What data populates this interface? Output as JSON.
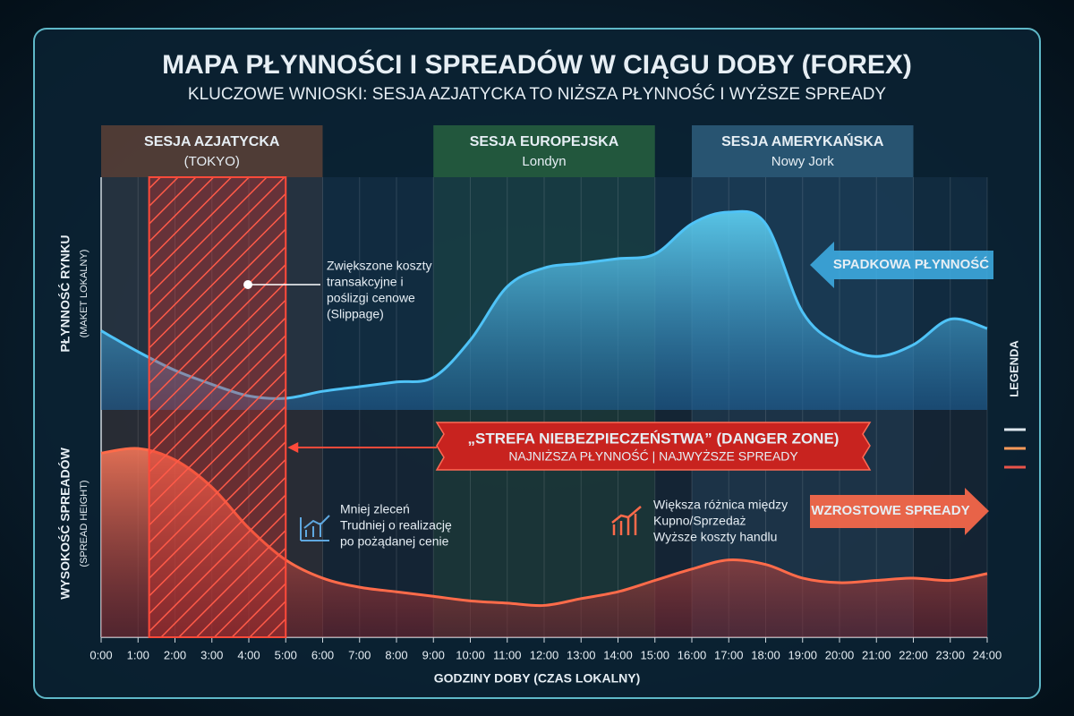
{
  "chart_data": {
    "type": "area",
    "title": "MAPA PŁYNNOŚCI I SPREADÓW W CIĄGU DOBY (FOREX)",
    "subtitle": "KLUCZOWE WNIOSKI: SESJA AZJATYCKA TO NIŻSZA PŁYNNOŚĆ I WYŻSZE SPREADY",
    "x_label": "GODZINY DOBY (CZAS LOKALNY)",
    "x": [
      0,
      1,
      2,
      3,
      4,
      5,
      6,
      7,
      8,
      9,
      10,
      11,
      12,
      13,
      14,
      15,
      16,
      17,
      18,
      19,
      20,
      21,
      22,
      23,
      24
    ],
    "xlim": [
      0,
      24
    ],
    "xticks": [
      {
        "value": 0,
        "label": "0:00"
      },
      {
        "value": 1,
        "label": "1:00"
      },
      {
        "value": 2,
        "label": "2:00"
      },
      {
        "value": 3,
        "label": "3:00"
      },
      {
        "value": 4,
        "label": "4:00"
      },
      {
        "value": 5,
        "label": "5:00"
      },
      {
        "value": 6,
        "label": "6:00"
      },
      {
        "value": 7,
        "label": "7:00"
      },
      {
        "value": 8,
        "label": "8:00"
      },
      {
        "value": 9,
        "label": "9:00"
      },
      {
        "value": 10,
        "label": "10:00"
      },
      {
        "value": 11,
        "label": "11:00"
      },
      {
        "value": 12,
        "label": "12:00"
      },
      {
        "value": 13,
        "label": "13:00"
      },
      {
        "value": 14,
        "label": "14:00"
      },
      {
        "value": 15,
        "label": "15:00"
      },
      {
        "value": 16,
        "label": "16:00"
      },
      {
        "value": 17,
        "label": "17:00"
      },
      {
        "value": 18,
        "label": "18:00"
      },
      {
        "value": 19,
        "label": "19:00"
      },
      {
        "value": 20,
        "label": "20:00"
      },
      {
        "value": 21,
        "label": "21:00"
      },
      {
        "value": 22,
        "label": "22:00"
      },
      {
        "value": 23,
        "label": "23:00"
      },
      {
        "value": 24,
        "label": "24:00"
      }
    ],
    "grid": true,
    "series": [
      {
        "name": "PŁYNNOŚĆ RYNKU",
        "axis_note": "(MAKET LOKALNY)",
        "color": "#4fc3f7",
        "ylim": [
          0,
          100
        ],
        "values": [
          34,
          25,
          17,
          11,
          6,
          5,
          8,
          10,
          12,
          14,
          30,
          53,
          61,
          63,
          65,
          67,
          80,
          85,
          80,
          42,
          28,
          23,
          28,
          39,
          35
        ]
      },
      {
        "name": "WYSOKOŚĆ SPREADÓW",
        "axis_note": "(SPREAD HEIGHT)",
        "color": "#ff6b4a",
        "ylim": [
          0,
          100
        ],
        "values": [
          81,
          83,
          78,
          66,
          48,
          34,
          26,
          22,
          20,
          18,
          16,
          15,
          14,
          17,
          20,
          25,
          30,
          34,
          32,
          26,
          24,
          25,
          26,
          25,
          28
        ]
      }
    ],
    "sessions": [
      {
        "name": "SESJA AZJATYCKA",
        "city": "(TOKYO)",
        "start": 0,
        "end": 6,
        "color": "#c0673e"
      },
      {
        "name": "SESJA EUROPEJSKA",
        "city": "Londyn",
        "start": 9,
        "end": 15,
        "color": "#4caf50"
      },
      {
        "name": "SESJA AMERYKAŃSKA",
        "city": "Nowy Jork",
        "start": 16,
        "end": 22,
        "color": "#5aa6d6"
      }
    ],
    "danger_zone": {
      "start": 1.3,
      "end": 5,
      "title": "„STREFA NIEBEZPIECZEŃSTWA” (DANGER ZONE)",
      "subtitle": "NAJNIŻSZA PŁYNNOŚĆ |  NAJWYŻSZE SPREADY"
    },
    "annotations": [
      {
        "lines": [
          "Zwiększone koszty",
          "transakcyjne i",
          "poślizgi cenowe",
          "(Slippage)"
        ]
      },
      {
        "lines": [
          "Mniej zleceń",
          "Trudniej o realizację",
          "po pożądanej cenie"
        ]
      },
      {
        "lines": [
          "Większa różnica między",
          "Kupno/Sprzedaż",
          "Wyższe koszty handlu"
        ]
      }
    ],
    "callouts": [
      "SPADKOWA PŁYNNOŚĆ",
      "WZROSTOWE SPREADY"
    ],
    "legend": {
      "title": "LEGENDA",
      "colors": [
        "#dfe8ee",
        "#ff9a5a",
        "#e8544a"
      ]
    }
  }
}
